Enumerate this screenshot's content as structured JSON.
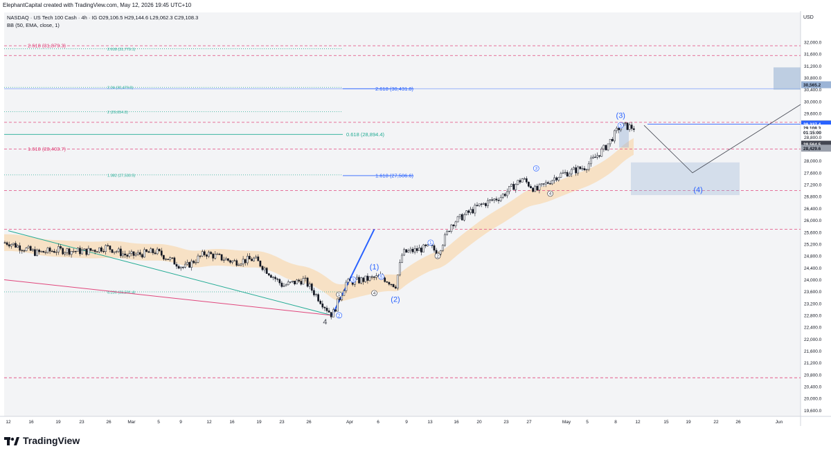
{
  "header": {
    "attribution": "ElephantCapital created with TradingView.com, May 12, 2026 19:45 UTC+10"
  },
  "legend": {
    "symbol_line": "NASDAQ · US Tech 100 Cash · 4h · IG  O29,106.5  H29,144.6  L29,062.3  C29,108.3",
    "indicator_line": "BB (50, EMA, close, 1)"
  },
  "axis": {
    "currency": "USD"
  },
  "footer": {
    "brand": "TradingView"
  },
  "colors": {
    "background": "#f3f4f6",
    "candle": "#131722",
    "band": "#f8dbb4",
    "fib_red": "#e0457b",
    "fib_green": "#22ab94",
    "fib_blue": "#2962ff",
    "price_blue": "#2962ff",
    "rect_blue": "#9bb4d6",
    "pivot": "#131722"
  },
  "chart_data": {
    "type": "candlestick",
    "title": "NASDAQ · US Tech 100 Cash · 4h · IG",
    "ylim": [
      19400,
      33000
    ],
    "y_ticks": [
      19600,
      20000,
      20400,
      20800,
      21200,
      21600,
      22000,
      22400,
      22800,
      23200,
      23600,
      24000,
      24400,
      24800,
      25200,
      25600,
      26000,
      26400,
      26800,
      27200,
      27600,
      28000,
      28400,
      28800,
      29200,
      29600,
      30000,
      30400,
      30800,
      31200,
      31600,
      32000
    ],
    "x_ticks": [
      "12",
      "16",
      "19",
      "23",
      "26",
      "Mar",
      "5",
      "9",
      "12",
      "16",
      "19",
      "23",
      "26",
      "Apr",
      "6",
      "9",
      "13",
      "16",
      "20",
      "23",
      "27",
      "May",
      "5",
      "8",
      "12",
      "15",
      "19",
      "22",
      "26",
      "Jun"
    ],
    "price_path": [
      {
        "t": "Feb 12",
        "price": 25250
      },
      {
        "t": "Feb 16",
        "price": 24900
      },
      {
        "t": "Feb 19",
        "price": 25000
      },
      {
        "t": "Feb 23",
        "price": 24950
      },
      {
        "t": "Feb 26",
        "price": 25100
      },
      {
        "t": "Mar 1",
        "price": 24800
      },
      {
        "t": "Mar 5",
        "price": 24950
      },
      {
        "t": "Mar 9",
        "price": 24400
      },
      {
        "t": "Mar 12",
        "price": 24900
      },
      {
        "t": "Mar 16",
        "price": 24600
      },
      {
        "t": "Mar 19",
        "price": 24700
      },
      {
        "t": "Mar 23",
        "price": 23800
      },
      {
        "t": "Mar 26",
        "price": 24000
      },
      {
        "t": "Mar 30",
        "price": 22800
      },
      {
        "t": "Apr 1",
        "price": 23900
      },
      {
        "t": "Apr 6",
        "price": 24100
      },
      {
        "t": "Apr 8",
        "price": 23800
      },
      {
        "t": "Apr 9",
        "price": 24900
      },
      {
        "t": "Apr 13",
        "price": 25100
      },
      {
        "t": "Apr 14",
        "price": 24900
      },
      {
        "t": "Apr 16",
        "price": 25900
      },
      {
        "t": "Apr 20",
        "price": 26500
      },
      {
        "t": "Apr 23",
        "price": 26800
      },
      {
        "t": "Apr 26",
        "price": 27400
      },
      {
        "t": "Apr 28",
        "price": 27000
      },
      {
        "t": "May 1",
        "price": 27500
      },
      {
        "t": "May 5",
        "price": 27800
      },
      {
        "t": "May 8",
        "price": 28500
      },
      {
        "t": "May 10",
        "price": 29200
      },
      {
        "t": "May 12",
        "price": 29108
      }
    ],
    "fib_levels": [
      {
        "label": "2.618 (31,879.3)",
        "value": 31879.3,
        "color": "#e0457b",
        "style": "dashed",
        "start": "left",
        "text_end": "left"
      },
      {
        "label": "2.618 (31,779.1)",
        "value": 31779.1,
        "color": "#22ab94",
        "style": "dotted",
        "start": "left",
        "text_end": "mid"
      },
      {
        "label": "",
        "value": 31550,
        "color": "#e0457b",
        "style": "dashed",
        "start": "left",
        "text_end": "none"
      },
      {
        "label": "2.618 (30,431.8)",
        "value": 30431.8,
        "color": "#2962ff",
        "style": "solid",
        "start": "mid",
        "text_end": "right"
      },
      {
        "label": "2.24 (30,479.8)",
        "value": 30479.8,
        "color": "#22ab94",
        "style": "dotted",
        "start": "left",
        "text_end": "mid"
      },
      {
        "label": "2 (29,654.8)",
        "value": 29654.8,
        "color": "#22ab94",
        "style": "dotted",
        "start": "left",
        "text_end": "mid"
      },
      {
        "label": "",
        "value": 29300,
        "color": "#e0457b",
        "style": "dashed",
        "start": "left",
        "text_end": "none"
      },
      {
        "label": "0.618 (28,894.4)",
        "value": 28894.4,
        "color": "#22ab94",
        "style": "solid",
        "start": "left",
        "text_end": "right"
      },
      {
        "label": "1.618 (28,403.7)",
        "value": 28403.7,
        "color": "#e0457b",
        "style": "dashed",
        "start": "left",
        "text_end": "left"
      },
      {
        "label": "1.382 (27,530.5)",
        "value": 27530.5,
        "color": "#22ab94",
        "style": "dotted",
        "start": "left",
        "text_end": "mid"
      },
      {
        "label": "1.618 (27,506.6)",
        "value": 27506.6,
        "color": "#2962ff",
        "style": "solid",
        "start": "mid",
        "text_end": "right"
      },
      {
        "label": "",
        "value": 27000,
        "color": "#e0457b",
        "style": "dashed",
        "start": "left",
        "text_end": "none"
      },
      {
        "label": "",
        "value": 25700,
        "color": "#e0457b",
        "style": "dashed",
        "start": "left",
        "text_end": "none"
      },
      {
        "label": "0.236 (23,591.4)",
        "value": 23591.4,
        "color": "#22ab94",
        "style": "dotted",
        "start": "left",
        "text_end": "mid"
      },
      {
        "label": "",
        "value": 20700,
        "color": "#e0457b",
        "style": "dashed",
        "start": "left",
        "text_end": "none"
      }
    ],
    "price_tags": [
      {
        "label": "30,565.2",
        "value": 30565.2,
        "bg": "#9bb4d6",
        "fg": "#131722"
      },
      {
        "label": "29,242.4",
        "value": 29242.4,
        "bg": "#131722",
        "fg": "#ffffff"
      },
      {
        "label": "29,237.4",
        "value": 29237.4,
        "bg": "#2962ff",
        "fg": "#ffffff"
      },
      {
        "label": "29,108.3",
        "value": 29108.3,
        "bg": "#ffffff",
        "fg": "#131722"
      },
      {
        "label": "01:15:00",
        "value": 28960,
        "bg": "#ffffff",
        "fg": "#131722"
      },
      {
        "label": "28,564.5",
        "value": 28564.5,
        "bg": "#434651",
        "fg": "#ffffff"
      },
      {
        "label": "28,429.6",
        "value": 28429.6,
        "bg": "#9aa0ab",
        "fg": "#131722"
      }
    ],
    "wave_labels": [
      {
        "text": "(3)",
        "t": "May 10",
        "price": 29450,
        "color": "#2962ff",
        "size": "large"
      },
      {
        "text": "(4)",
        "t": "May 21",
        "price": 26950,
        "color": "#2962ff",
        "size": "large"
      },
      {
        "text": "(1)",
        "t": "Apr 5",
        "price": 24350,
        "color": "#2962ff",
        "size": "large"
      },
      {
        "text": "(2)",
        "t": "Apr 8",
        "price": 23250,
        "color": "#2962ff",
        "size": "large"
      },
      {
        "text": "4",
        "t": "Mar 29",
        "price": 22500,
        "color": "#434651",
        "size": "large"
      },
      {
        "text": "5",
        "t": "May 10",
        "price": 29200,
        "color": "#2962ff",
        "size": "circle"
      },
      {
        "text": "3",
        "t": "Apr 28",
        "price": 27750,
        "color": "#2962ff",
        "size": "circle"
      },
      {
        "text": "4",
        "t": "Apr 30",
        "price": 26900,
        "color": "#434651",
        "size": "circle"
      },
      {
        "text": "1",
        "t": "Apr 13",
        "price": 25250,
        "color": "#2962ff",
        "size": "circle"
      },
      {
        "text": "2",
        "t": "Apr 14",
        "price": 24800,
        "color": "#434651",
        "size": "circle"
      },
      {
        "text": "3",
        "t": "Apr 2",
        "price": 24000,
        "color": "#2962ff",
        "size": "circle"
      },
      {
        "text": "5",
        "t": "Apr 6",
        "price": 24100,
        "color": "#2962ff",
        "size": "circle"
      },
      {
        "text": "4",
        "t": "Apr 5",
        "price": 23550,
        "color": "#434651",
        "size": "circle"
      },
      {
        "text": "1",
        "t": "Mar 31",
        "price": 23500,
        "color": "#434651",
        "size": "circle"
      },
      {
        "text": "2",
        "t": "Mar 31",
        "price": 22800,
        "color": "#2962ff",
        "size": "circle"
      }
    ]
  }
}
